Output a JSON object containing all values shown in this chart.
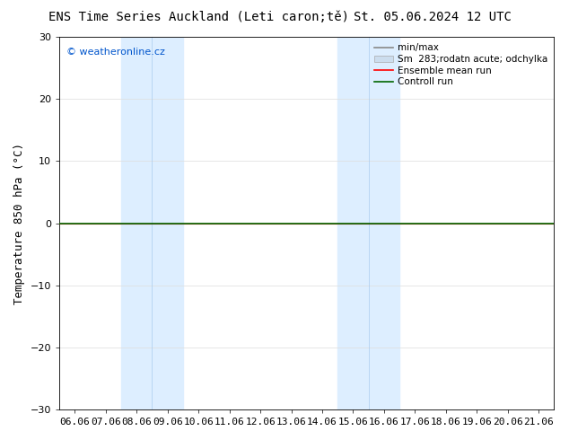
{
  "title_left": "ENS Time Series Auckland (Leti caron;tě)",
  "title_right": "St. 05.06.2024 12 UTC",
  "ylabel": "Temperature 850 hPa (°C)",
  "watermark": "© weatheronline.cz",
  "ylim": [
    -30,
    30
  ],
  "yticks": [
    -30,
    -20,
    -10,
    0,
    10,
    20,
    30
  ],
  "xtick_labels": [
    "06.06",
    "07.06",
    "08.06",
    "09.06",
    "10.06",
    "11.06",
    "12.06",
    "13.06",
    "14.06",
    "15.06",
    "16.06",
    "17.06",
    "18.06",
    "19.06",
    "20.06",
    "21.06"
  ],
  "shaded_bands": [
    {
      "xmin": 2.0,
      "xmax": 4.0
    },
    {
      "xmin": 9.0,
      "xmax": 11.0
    }
  ],
  "shade_color": "#ddeeff",
  "zero_line_y": 0,
  "ensemble_mean_color": "#ff0000",
  "control_run_color": "#006600",
  "minmax_color": "#888888",
  "spread_color": "#ccddee",
  "background_color": "#ffffff",
  "plot_bg_color": "#f8f8f8",
  "border_color": "#000000",
  "title_fontsize": 10,
  "axis_label_fontsize": 9,
  "tick_fontsize": 8,
  "legend_fontsize": 7.5,
  "watermark_color": "#0055cc",
  "grid_color": "#dddddd",
  "watermark_fontsize": 8
}
